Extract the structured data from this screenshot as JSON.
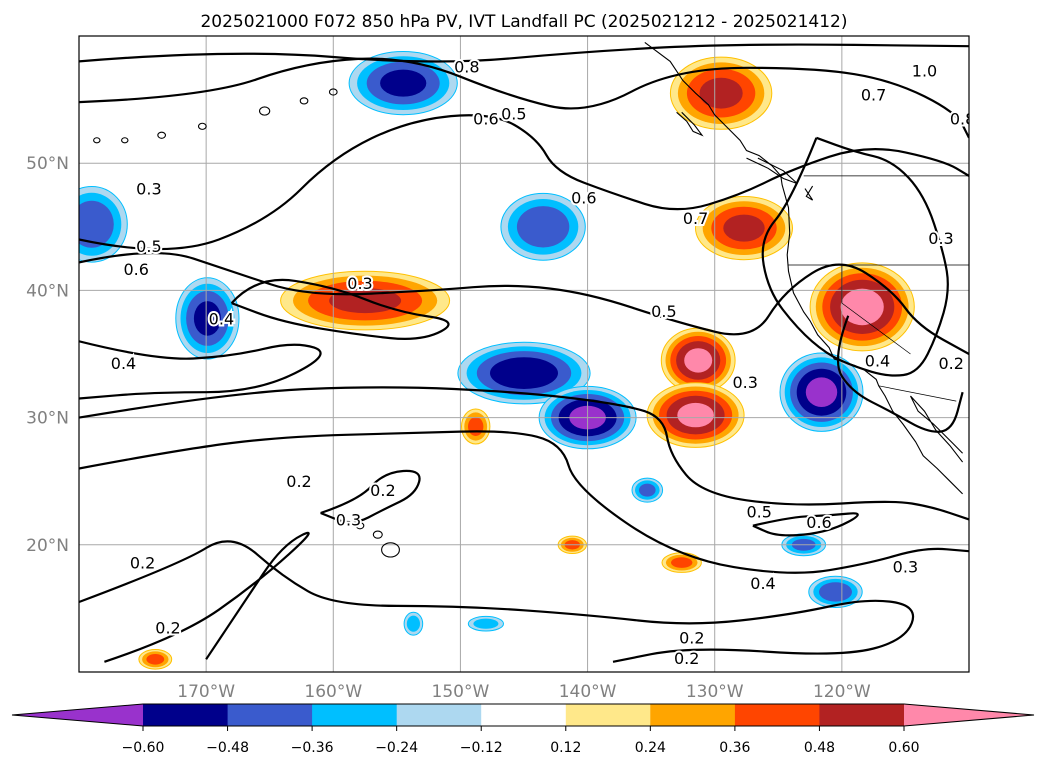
{
  "chart_data": {
    "type": "contour-map",
    "title": "2025021000 F072 850 hPa PV, IVT Landfall PC (2025021212 - 2025021412)",
    "lon_range": [
      -180,
      -110
    ],
    "lat_range": [
      10,
      60
    ],
    "lat_ticks": [
      {
        "value": 50,
        "label": "50°N"
      },
      {
        "value": 40,
        "label": "40°N"
      },
      {
        "value": 30,
        "label": "30°N"
      },
      {
        "value": 20,
        "label": "20°N"
      }
    ],
    "lon_ticks": [
      {
        "value": -170,
        "label": "170°W"
      },
      {
        "value": -160,
        "label": "160°W"
      },
      {
        "value": -150,
        "label": "150°W"
      },
      {
        "value": -140,
        "label": "140°W"
      },
      {
        "value": -130,
        "label": "130°W"
      },
      {
        "value": -120,
        "label": "120°W"
      }
    ],
    "grid": true,
    "colorbar": {
      "ticks": [
        -0.6,
        -0.48,
        -0.36,
        -0.24,
        -0.12,
        0.12,
        0.24,
        0.36,
        0.48,
        0.6
      ],
      "tick_labels": [
        "−0.60",
        "−0.48",
        "−0.36",
        "−0.24",
        "−0.12",
        "0.12",
        "0.24",
        "0.36",
        "0.48",
        "0.60"
      ],
      "colors": [
        "#9932cc",
        "#00008b",
        "#3a5bcd",
        "#00bfff",
        "#add8f0",
        "#ffffff",
        "#ffe88a",
        "#ffa500",
        "#ff4500",
        "#b22222",
        "#ff88aa"
      ],
      "extend": "both"
    },
    "contour_labels": [
      {
        "text": "0.8",
        "lon": -149.5,
        "lat": 57.6
      },
      {
        "text": "1.0",
        "lon": -113.5,
        "lat": 57.3
      },
      {
        "text": "0.7",
        "lon": -117.5,
        "lat": 55.4
      },
      {
        "text": "0.8",
        "lon": -110.5,
        "lat": 53.5
      },
      {
        "text": "0.6",
        "lon": -148.0,
        "lat": 53.5
      },
      {
        "text": "0.5",
        "lon": -145.8,
        "lat": 53.9
      },
      {
        "text": "0.3",
        "lon": -174.5,
        "lat": 48.0
      },
      {
        "text": "0.6",
        "lon": -140.3,
        "lat": 47.3
      },
      {
        "text": "0.7",
        "lon": -131.5,
        "lat": 45.7
      },
      {
        "text": "0.3",
        "lon": -112.2,
        "lat": 44.1
      },
      {
        "text": "0.5",
        "lon": -174.5,
        "lat": 43.5
      },
      {
        "text": "0.6",
        "lon": -175.5,
        "lat": 41.7
      },
      {
        "text": "0.3",
        "lon": -157.9,
        "lat": 40.6
      },
      {
        "text": "0.4",
        "lon": -168.8,
        "lat": 37.8
      },
      {
        "text": "0.5",
        "lon": -134.0,
        "lat": 38.4
      },
      {
        "text": "0.4",
        "lon": -176.5,
        "lat": 34.3
      },
      {
        "text": "0.4",
        "lon": -117.2,
        "lat": 34.5
      },
      {
        "text": "0.2",
        "lon": -111.4,
        "lat": 34.3
      },
      {
        "text": "0.3",
        "lon": -127.6,
        "lat": 32.8
      },
      {
        "text": "0.2",
        "lon": -162.7,
        "lat": 25.0
      },
      {
        "text": "0.2",
        "lon": -156.1,
        "lat": 24.3
      },
      {
        "text": "0.3",
        "lon": -158.8,
        "lat": 22.0
      },
      {
        "text": "0.5",
        "lon": -126.5,
        "lat": 22.6
      },
      {
        "text": "0.6",
        "lon": -121.8,
        "lat": 21.8
      },
      {
        "text": "0.3",
        "lon": -115.0,
        "lat": 18.3
      },
      {
        "text": "0.4",
        "lon": -126.2,
        "lat": 17.0
      },
      {
        "text": "0.2",
        "lon": -175.0,
        "lat": 18.6
      },
      {
        "text": "0.2",
        "lon": -173.0,
        "lat": 13.5
      },
      {
        "text": "0.2",
        "lon": -131.8,
        "lat": 12.7
      },
      {
        "text": "0.2",
        "lon": -132.2,
        "lat": 11.1
      }
    ],
    "anomaly_blobs": [
      {
        "sign": "negative",
        "lon": -154.5,
        "lat": 56.3,
        "rlon": 4.8,
        "rlat": 2.8,
        "peak": -0.5
      },
      {
        "sign": "negative",
        "lon": -179.0,
        "lat": 45.2,
        "rlon": 3.2,
        "rlat": 3.4,
        "peak": -0.45
      },
      {
        "sign": "negative",
        "lon": -169.9,
        "lat": 37.8,
        "rlon": 2.8,
        "rlat": 3.6,
        "peak": -0.5
      },
      {
        "sign": "negative",
        "lon": -143.5,
        "lat": 45.0,
        "rlon": 3.8,
        "rlat": 3.0,
        "peak": -0.45
      },
      {
        "sign": "negative",
        "lon": -145.0,
        "lat": 33.5,
        "rlon": 5.8,
        "rlat": 2.7,
        "peak": -0.55
      },
      {
        "sign": "negative",
        "lon": -140.0,
        "lat": 30.0,
        "rlon": 4.2,
        "rlat": 2.7,
        "peak": -0.62
      },
      {
        "sign": "negative",
        "lon": -121.6,
        "lat": 32.0,
        "rlon": 3.6,
        "rlat": 3.4,
        "peak": -0.62
      },
      {
        "sign": "negative",
        "lon": -135.3,
        "lat": 24.3,
        "rlon": 1.4,
        "rlat": 1.1,
        "peak": -0.4
      },
      {
        "sign": "negative",
        "lon": -123.0,
        "lat": 20.0,
        "rlon": 2.0,
        "rlat": 1.0,
        "peak": -0.4
      },
      {
        "sign": "negative",
        "lon": -120.5,
        "lat": 16.3,
        "rlon": 2.4,
        "rlat": 1.4,
        "peak": -0.45
      },
      {
        "sign": "negative",
        "lon": -153.7,
        "lat": 13.8,
        "rlon": 0.9,
        "rlat": 1.1,
        "peak": -0.3
      },
      {
        "sign": "negative",
        "lon": -148.0,
        "lat": 13.8,
        "rlon": 1.7,
        "rlat": 0.7,
        "peak": -0.3
      },
      {
        "sign": "positive",
        "lon": -129.5,
        "lat": 55.5,
        "rlon": 4.5,
        "rlat": 3.2,
        "peak": 0.5
      },
      {
        "sign": "positive",
        "lon": -127.7,
        "lat": 44.9,
        "rlon": 4.3,
        "rlat": 2.8,
        "peak": 0.5
      },
      {
        "sign": "positive",
        "lon": -157.5,
        "lat": 39.2,
        "rlon": 7.5,
        "rlat": 2.6,
        "peak": 0.5
      },
      {
        "sign": "positive",
        "lon": -118.4,
        "lat": 38.7,
        "rlon": 4.5,
        "rlat": 3.8,
        "peak": 0.64
      },
      {
        "sign": "positive",
        "lon": -131.3,
        "lat": 34.5,
        "rlon": 3.2,
        "rlat": 2.8,
        "peak": 0.62
      },
      {
        "sign": "positive",
        "lon": -131.5,
        "lat": 30.2,
        "rlon": 4.2,
        "rlat": 2.8,
        "peak": 0.62
      },
      {
        "sign": "positive",
        "lon": -148.8,
        "lat": 29.3,
        "rlon": 1.3,
        "rlat": 1.6,
        "peak": 0.4
      },
      {
        "sign": "positive",
        "lon": -141.2,
        "lat": 20.0,
        "rlon": 1.3,
        "rlat": 0.8,
        "peak": 0.4
      },
      {
        "sign": "positive",
        "lon": -132.6,
        "lat": 18.6,
        "rlon": 1.8,
        "rlat": 0.9,
        "peak": 0.4
      },
      {
        "sign": "positive",
        "lon": -174.0,
        "lat": 11.0,
        "rlon": 1.5,
        "rlat": 0.9,
        "peak": 0.4
      }
    ]
  }
}
